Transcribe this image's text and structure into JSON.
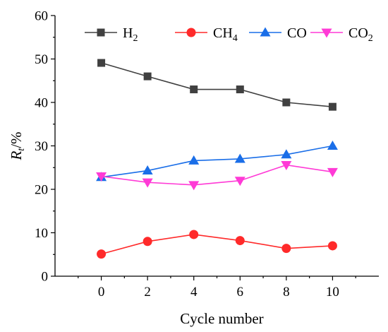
{
  "chart_data": {
    "type": "line",
    "x": [
      0,
      2,
      4,
      6,
      8,
      10
    ],
    "xlim": [
      -2,
      12
    ],
    "xticks": [
      0,
      2,
      4,
      6,
      8,
      10
    ],
    "ylim": [
      0,
      60
    ],
    "yticks": [
      0,
      10,
      20,
      30,
      40,
      50,
      60
    ],
    "xlabel": "Cycle number",
    "ylabel": {
      "main": "R",
      "sub": "t",
      "suffix": "/%"
    },
    "grid": false,
    "legend_position": "top",
    "series": [
      {
        "name": "H",
        "name_sub": "2",
        "marker": "square",
        "color": "#404040",
        "values": [
          49.1,
          46.0,
          43.0,
          43.0,
          40.0,
          39.0
        ]
      },
      {
        "name": "CH",
        "name_sub": "4",
        "marker": "circle",
        "color": "#ff2a2a",
        "values": [
          5.1,
          8.0,
          9.6,
          8.2,
          6.4,
          7.0
        ]
      },
      {
        "name": "CO",
        "name_sub": "",
        "marker": "triangle-up",
        "color": "#1a6ee8",
        "values": [
          22.8,
          24.3,
          26.6,
          27.0,
          28.0,
          30.0
        ]
      },
      {
        "name": "CO",
        "name_sub": "2",
        "marker": "triangle-down",
        "color": "#ff3ad6",
        "values": [
          23.0,
          21.6,
          21.0,
          22.0,
          25.6,
          24.0
        ]
      }
    ]
  }
}
